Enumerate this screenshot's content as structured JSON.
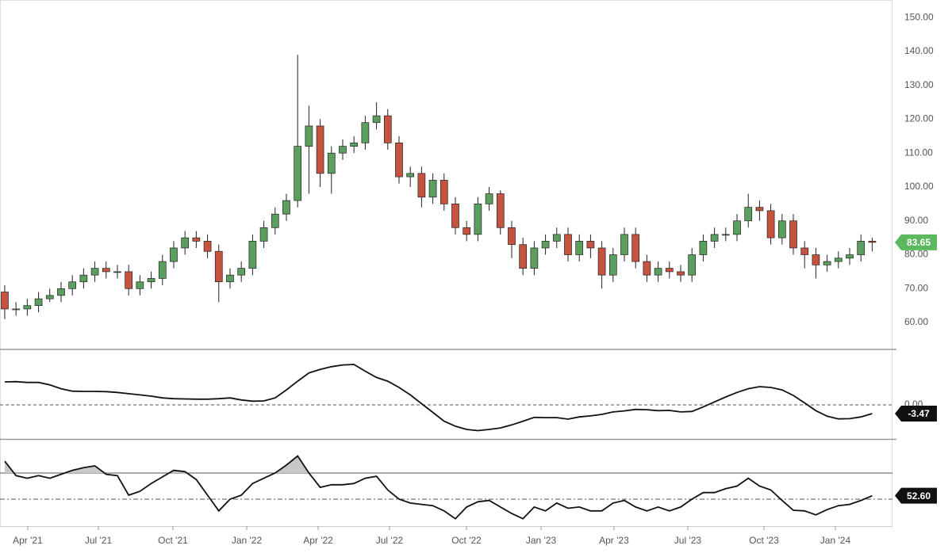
{
  "chart_data": [
    {
      "type": "candlestick",
      "x": [
        0,
        1,
        2,
        3,
        4,
        5,
        6,
        7,
        8,
        9,
        10,
        11,
        12,
        13,
        14,
        15,
        16,
        17,
        18,
        19,
        20,
        21,
        22,
        23,
        24,
        25,
        26,
        27,
        28,
        29,
        30,
        31,
        32,
        33,
        34,
        35,
        36,
        37,
        38,
        39,
        40,
        41,
        42,
        43,
        44,
        45,
        46,
        47,
        48,
        49,
        50,
        51,
        52,
        53,
        54,
        55,
        56,
        57,
        58,
        59,
        60,
        61,
        62,
        63,
        64,
        65,
        66,
        67,
        68,
        69,
        70,
        71,
        72,
        73,
        74,
        75,
        76,
        77
      ],
      "open": [
        69,
        64,
        64,
        65,
        67,
        68,
        70,
        72,
        74,
        76,
        75,
        75,
        70,
        72,
        73,
        78,
        82,
        85,
        84,
        81,
        72,
        74,
        76,
        84,
        88,
        92,
        96,
        112,
        118,
        104,
        110,
        112,
        113,
        119,
        121,
        113,
        103,
        104,
        97,
        102,
        95,
        88,
        86,
        95,
        98,
        88,
        83,
        76,
        82,
        84,
        86,
        80,
        84,
        82,
        74,
        80,
        86,
        78,
        74,
        76,
        75,
        74,
        80,
        84,
        86,
        86,
        90,
        94,
        93,
        85,
        90,
        82,
        80,
        77,
        78,
        79,
        80,
        84
      ],
      "high": [
        71,
        66,
        67,
        69,
        70,
        72,
        74,
        76,
        78,
        78,
        77,
        77,
        74,
        75,
        80,
        84,
        87,
        87,
        86,
        83,
        76,
        78,
        86,
        90,
        94,
        98,
        139,
        124,
        120,
        112,
        114,
        115,
        121,
        125,
        123,
        115,
        106,
        106,
        104,
        104,
        97,
        90,
        97,
        100,
        99,
        90,
        85,
        84,
        86,
        88,
        88,
        86,
        86,
        84,
        82,
        88,
        88,
        80,
        78,
        78,
        77,
        82,
        86,
        88,
        88,
        92,
        98,
        96,
        95,
        92,
        92,
        84,
        82,
        80,
        81,
        82,
        86,
        85
      ],
      "low": [
        61,
        62,
        62,
        63,
        66,
        66,
        68,
        70,
        72,
        73,
        73,
        68,
        68,
        70,
        71,
        76,
        80,
        82,
        79,
        66,
        70,
        72,
        74,
        82,
        86,
        90,
        94,
        98,
        100,
        98,
        108,
        110,
        111,
        117,
        111,
        101,
        100,
        94,
        95,
        93,
        86,
        84,
        84,
        93,
        86,
        79,
        74,
        74,
        80,
        82,
        78,
        78,
        79,
        70,
        72,
        78,
        76,
        72,
        72,
        73,
        72,
        72,
        78,
        82,
        84,
        84,
        88,
        90,
        83,
        83,
        80,
        76,
        73,
        75,
        76,
        77,
        78,
        81
      ],
      "close": [
        64,
        64,
        65,
        67,
        68,
        70,
        72,
        74,
        76,
        75,
        75,
        70,
        72,
        73,
        78,
        82,
        85,
        84,
        81,
        72,
        74,
        76,
        84,
        88,
        92,
        96,
        112,
        118,
        104,
        110,
        112,
        113,
        119,
        121,
        113,
        103,
        104,
        97,
        102,
        95,
        88,
        86,
        95,
        98,
        88,
        83,
        76,
        82,
        84,
        86,
        80,
        84,
        82,
        74,
        80,
        86,
        78,
        74,
        76,
        75,
        74,
        80,
        84,
        86,
        86,
        90,
        94,
        93,
        85,
        90,
        82,
        80,
        77,
        78,
        79,
        80,
        84,
        83.65
      ],
      "up_color": "#5b9f5f",
      "down_color": "#c5533f",
      "xlim": [
        -0.42,
        78.45
      ],
      "ylim": [
        52.3,
        154
      ],
      "yticks": [
        {
          "value": 60,
          "label": "60.00"
        },
        {
          "value": 70,
          "label": "70.00"
        },
        {
          "value": 80,
          "label": "80.00"
        },
        {
          "value": 90,
          "label": "90.00"
        },
        {
          "value": 100,
          "label": "100.00"
        },
        {
          "value": 110,
          "label": "110.00"
        },
        {
          "value": 120,
          "label": "120.00"
        },
        {
          "value": 130,
          "label": "130.00"
        },
        {
          "value": 140,
          "label": "140.00"
        },
        {
          "value": 150,
          "label": "150.00"
        }
      ],
      "grid": false,
      "last_value_label": "83.65",
      "badge_color": "#5cb85c"
    },
    {
      "type": "line",
      "values": [
        9.2,
        9.3,
        9.0,
        9.0,
        8.0,
        6.5,
        5.5,
        5.4,
        5.4,
        5.3,
        5.0,
        4.5,
        4.0,
        3.5,
        2.8,
        2.5,
        2.4,
        2.3,
        2.3,
        2.5,
        2.8,
        2.0,
        1.5,
        1.6,
        2.8,
        6.0,
        9.5,
        12.8,
        14.2,
        15.3,
        16.0,
        16.2,
        13.5,
        11.0,
        9.5,
        7.0,
        4.0,
        0.5,
        -3.0,
        -6.5,
        -8.5,
        -9.8,
        -10.3,
        -9.8,
        -9.2,
        -8.0,
        -6.5,
        -5.0,
        -5.1,
        -5.1,
        -5.7,
        -4.8,
        -4.4,
        -3.8,
        -2.8,
        -2.4,
        -1.8,
        -1.9,
        -2.3,
        -2.2,
        -2.8,
        -2.6,
        -0.8,
        1.2,
        3.2,
        5.0,
        6.5,
        7.3,
        7.0,
        6.0,
        3.8,
        0.8,
        -2.3,
        -4.5,
        -5.6,
        -5.5,
        -4.8,
        -3.47
      ],
      "color": "#111111",
      "xlim": [
        -0.42,
        78.45
      ],
      "ylim": [
        -13.3,
        21.9
      ],
      "yticks": [
        {
          "value": 0,
          "label": "0.00"
        }
      ],
      "grid": true,
      "last_value_label": "-3.47",
      "badge_color": "#111111"
    },
    {
      "type": "line",
      "values": [
        79,
        68,
        66,
        68,
        66,
        69,
        72,
        74,
        75.5,
        69,
        68,
        53,
        56,
        62,
        67,
        72,
        71,
        65,
        53,
        41,
        50,
        53,
        62,
        66,
        70,
        76,
        83,
        70,
        59,
        61,
        61,
        62,
        66,
        67.5,
        57,
        50,
        47,
        46,
        45,
        41,
        35,
        44,
        48,
        49,
        44,
        39,
        35,
        44,
        41,
        47,
        43,
        44,
        41,
        41,
        47,
        49,
        44,
        41,
        44,
        41,
        44,
        50,
        55,
        55,
        58,
        60,
        66,
        60,
        57,
        49,
        41.5,
        41,
        38,
        42,
        45,
        46,
        49,
        52.6
      ],
      "color": "#111111",
      "xlim": [
        -0.42,
        78.45
      ],
      "ylim": [
        30,
        94.8
      ],
      "reference_lines": [
        70,
        50
      ],
      "shade_above_first_reference": true,
      "xticks": [
        {
          "value": 2.04,
          "label": "Apr '21"
        },
        {
          "value": 8.31,
          "label": "Jul '21"
        },
        {
          "value": 14.93,
          "label": "Oct '21"
        },
        {
          "value": 21.48,
          "label": "Jan '22"
        },
        {
          "value": 27.82,
          "label": "Apr '22"
        },
        {
          "value": 34.15,
          "label": "Jul '22"
        },
        {
          "value": 40.99,
          "label": "Oct '22"
        },
        {
          "value": 47.61,
          "label": "Jan '23"
        },
        {
          "value": 54.08,
          "label": "Apr '23"
        },
        {
          "value": 60.63,
          "label": "Jul '23"
        },
        {
          "value": 67.39,
          "label": "Oct '23"
        },
        {
          "value": 73.73,
          "label": "Jan '24"
        }
      ],
      "last_value_label": "52.60",
      "badge_color": "#111111"
    }
  ]
}
